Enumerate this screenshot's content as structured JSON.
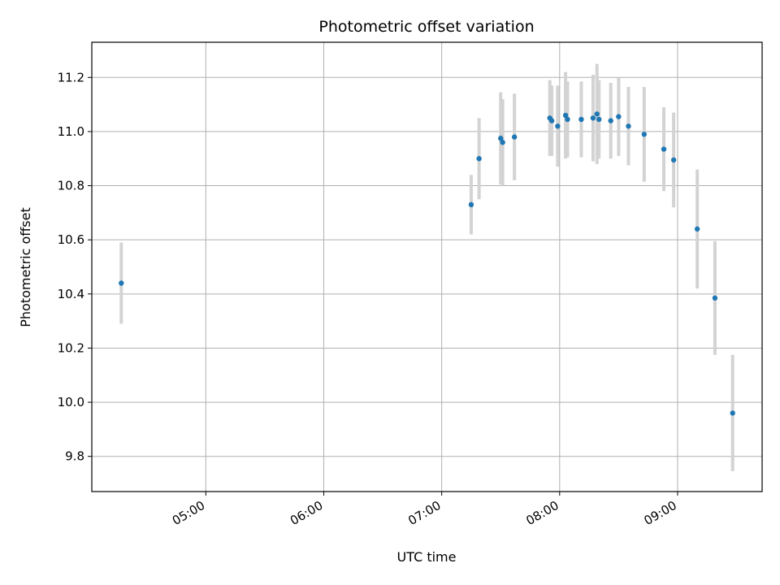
{
  "chart_data": {
    "type": "scatter",
    "title": "Photometric offset variation",
    "xlabel": "UTC time",
    "ylabel": "Photometric offset",
    "x_format": "HH:MM",
    "xlim": [
      "04:02",
      "09:43"
    ],
    "ylim": [
      9.67,
      11.33
    ],
    "x_ticks": [
      "05:00",
      "06:00",
      "07:00",
      "08:00",
      "09:00"
    ],
    "y_ticks": [
      "9.8",
      "10.0",
      "10.2",
      "10.4",
      "10.6",
      "10.8",
      "11.0",
      "11.2"
    ],
    "grid": true,
    "marker_color": "#1f77b4",
    "errorbar_color": "#d3d3d3",
    "points": [
      {
        "x": "04:17",
        "y": 10.44,
        "yerr": 0.15
      },
      {
        "x": "07:15",
        "y": 10.73,
        "yerr": 0.11
      },
      {
        "x": "07:19",
        "y": 10.9,
        "yerr": 0.15
      },
      {
        "x": "07:30",
        "y": 10.975,
        "yerr": 0.17
      },
      {
        "x": "07:31",
        "y": 10.96,
        "yerr": 0.16
      },
      {
        "x": "07:37",
        "y": 10.98,
        "yerr": 0.16
      },
      {
        "x": "07:55",
        "y": 11.05,
        "yerr": 0.14
      },
      {
        "x": "07:56",
        "y": 11.04,
        "yerr": 0.13
      },
      {
        "x": "07:59",
        "y": 11.02,
        "yerr": 0.15
      },
      {
        "x": "08:03",
        "y": 11.06,
        "yerr": 0.16
      },
      {
        "x": "08:04",
        "y": 11.045,
        "yerr": 0.14
      },
      {
        "x": "08:11",
        "y": 11.045,
        "yerr": 0.14
      },
      {
        "x": "08:17",
        "y": 11.05,
        "yerr": 0.16
      },
      {
        "x": "08:19",
        "y": 11.065,
        "yerr": 0.185
      },
      {
        "x": "08:20",
        "y": 11.045,
        "yerr": 0.145
      },
      {
        "x": "08:26",
        "y": 11.04,
        "yerr": 0.14
      },
      {
        "x": "08:30",
        "y": 11.055,
        "yerr": 0.145
      },
      {
        "x": "08:35",
        "y": 11.02,
        "yerr": 0.145
      },
      {
        "x": "08:43",
        "y": 10.99,
        "yerr": 0.175
      },
      {
        "x": "08:53",
        "y": 10.935,
        "yerr": 0.155
      },
      {
        "x": "08:58",
        "y": 10.895,
        "yerr": 0.175
      },
      {
        "x": "09:10",
        "y": 10.64,
        "yerr": 0.22
      },
      {
        "x": "09:19",
        "y": 10.385,
        "yerr": 0.21
      },
      {
        "x": "09:28",
        "y": 9.96,
        "yerr": 0.215
      }
    ]
  }
}
